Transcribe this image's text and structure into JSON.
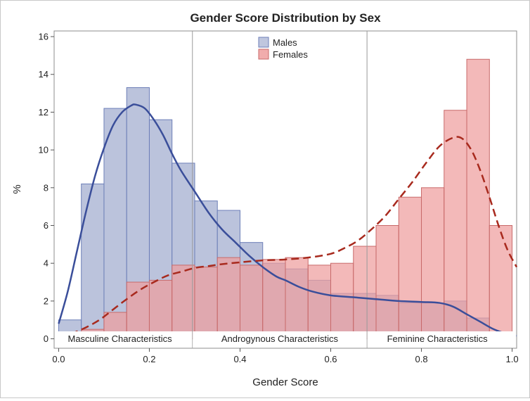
{
  "chart_data": {
    "type": "bar",
    "title": "Gender Score Distribution by Sex",
    "xlabel": "Gender Score",
    "ylabel": "%",
    "xlim": [
      -0.01,
      1.01
    ],
    "ylim": [
      -0.5,
      16.3
    ],
    "x_ticks": [
      0.0,
      0.2,
      0.4,
      0.6,
      0.8,
      1.0
    ],
    "x_tick_labels": [
      "0.0",
      "0.2",
      "0.4",
      "0.6",
      "0.8",
      "1.0"
    ],
    "y_ticks": [
      0,
      2,
      4,
      6,
      8,
      10,
      12,
      14,
      16
    ],
    "y_tick_labels": [
      "0",
      "2",
      "4",
      "6",
      "8",
      "10",
      "12",
      "14",
      "16"
    ],
    "bin_width": 0.05,
    "bin_starts": [
      0.0,
      0.05,
      0.1,
      0.15,
      0.2,
      0.25,
      0.3,
      0.35,
      0.4,
      0.45,
      0.5,
      0.55,
      0.6,
      0.65,
      0.7,
      0.75,
      0.8,
      0.85,
      0.9,
      0.95
    ],
    "series": [
      {
        "name": "Males",
        "fill": "#b4bcd8",
        "stroke": "#6d7fb8",
        "curve_color": "#3a4e9a",
        "curve_dash": "solid",
        "values": [
          1.0,
          8.2,
          12.2,
          13.3,
          11.6,
          9.3,
          7.3,
          6.8,
          5.1,
          4.0,
          3.7,
          3.1,
          2.4,
          2.4,
          2.3,
          1.9,
          1.9,
          2.0,
          1.1,
          0.3
        ],
        "kde": [
          [
            0.0,
            0.8
          ],
          [
            0.02,
            2.5
          ],
          [
            0.04,
            4.6
          ],
          [
            0.06,
            6.7
          ],
          [
            0.08,
            8.6
          ],
          [
            0.1,
            10.1
          ],
          [
            0.12,
            11.3
          ],
          [
            0.14,
            12.0
          ],
          [
            0.16,
            12.35
          ],
          [
            0.17,
            12.4
          ],
          [
            0.19,
            12.2
          ],
          [
            0.21,
            11.6
          ],
          [
            0.23,
            10.8
          ],
          [
            0.25,
            9.8
          ],
          [
            0.27,
            8.9
          ],
          [
            0.3,
            7.8
          ],
          [
            0.33,
            6.7
          ],
          [
            0.36,
            5.8
          ],
          [
            0.39,
            5.1
          ],
          [
            0.42,
            4.4
          ],
          [
            0.45,
            3.8
          ],
          [
            0.48,
            3.3
          ],
          [
            0.5,
            3.1
          ],
          [
            0.53,
            2.75
          ],
          [
            0.56,
            2.5
          ],
          [
            0.6,
            2.3
          ],
          [
            0.65,
            2.2
          ],
          [
            0.7,
            2.1
          ],
          [
            0.75,
            2.0
          ],
          [
            0.8,
            1.95
          ],
          [
            0.84,
            1.9
          ],
          [
            0.87,
            1.7
          ],
          [
            0.9,
            1.3
          ],
          [
            0.93,
            0.9
          ],
          [
            0.96,
            0.5
          ],
          [
            0.99,
            0.25
          ],
          [
            1.01,
            0.15
          ]
        ]
      },
      {
        "name": "Females",
        "fill": "#ee9e9e",
        "stroke": "#c86a6a",
        "curve_color": "#a82a1e",
        "curve_dash": "dashed",
        "values": [
          0.0,
          0.5,
          1.4,
          3.0,
          3.1,
          3.9,
          3.8,
          4.3,
          3.9,
          4.2,
          4.3,
          3.9,
          4.0,
          4.9,
          6.0,
          7.5,
          8.0,
          12.1,
          14.8,
          6.0
        ],
        "kde": [
          [
            0.0,
            0.15
          ],
          [
            0.03,
            0.3
          ],
          [
            0.06,
            0.6
          ],
          [
            0.09,
            1.0
          ],
          [
            0.12,
            1.55
          ],
          [
            0.15,
            2.1
          ],
          [
            0.18,
            2.6
          ],
          [
            0.21,
            3.0
          ],
          [
            0.24,
            3.35
          ],
          [
            0.27,
            3.55
          ],
          [
            0.3,
            3.75
          ],
          [
            0.33,
            3.85
          ],
          [
            0.36,
            3.95
          ],
          [
            0.4,
            4.05
          ],
          [
            0.45,
            4.15
          ],
          [
            0.5,
            4.2
          ],
          [
            0.55,
            4.3
          ],
          [
            0.6,
            4.5
          ],
          [
            0.63,
            4.8
          ],
          [
            0.66,
            5.2
          ],
          [
            0.69,
            5.8
          ],
          [
            0.72,
            6.5
          ],
          [
            0.75,
            7.4
          ],
          [
            0.78,
            8.3
          ],
          [
            0.81,
            9.3
          ],
          [
            0.84,
            10.2
          ],
          [
            0.87,
            10.65
          ],
          [
            0.89,
            10.6
          ],
          [
            0.91,
            10.0
          ],
          [
            0.93,
            8.9
          ],
          [
            0.95,
            7.5
          ],
          [
            0.97,
            6.0
          ],
          [
            0.99,
            4.7
          ],
          [
            1.01,
            3.8
          ]
        ]
      }
    ],
    "reference_lines_x": [
      0.295,
      0.68
    ],
    "regions": [
      {
        "label": "Masculine Characteristics",
        "center": 0.135
      },
      {
        "label": "Androgynous Characteristics",
        "center": 0.4875
      },
      {
        "label": "Feminine Characteristics",
        "center": 0.835
      }
    ],
    "legend_position": "top-center",
    "grid": false
  }
}
